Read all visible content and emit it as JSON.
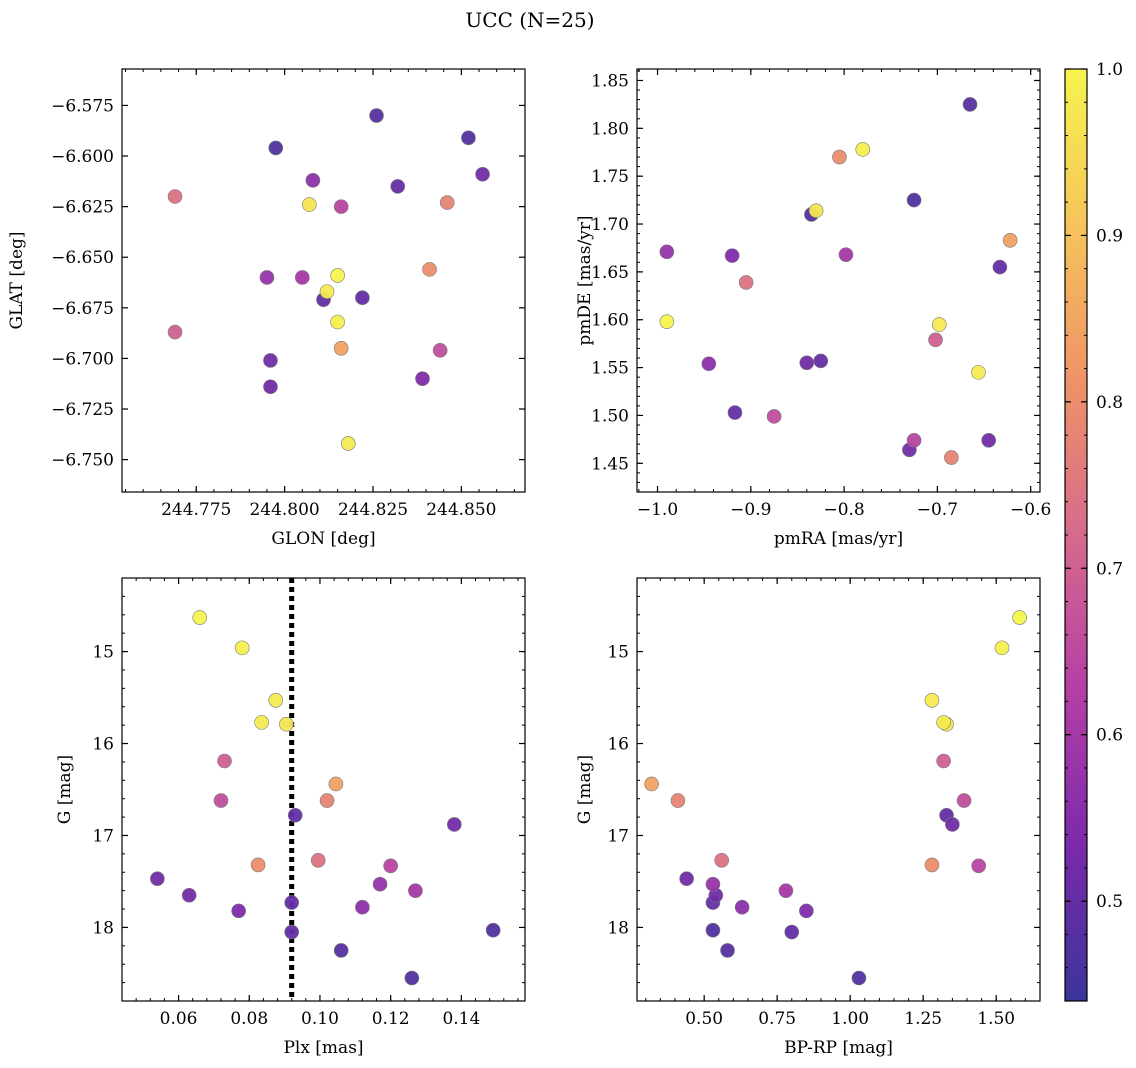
{
  "figure": {
    "title": "UCC (N=25)"
  },
  "colorbar": {
    "range": [
      0.44,
      1.0
    ],
    "ticks": [
      0.5,
      0.6,
      0.7,
      0.8,
      0.9,
      1.0
    ],
    "tick_labels": [
      "0.5",
      "0.6",
      "0.7",
      "0.8",
      "0.9",
      "1.0"
    ],
    "colormap": "plasma",
    "colormap_stops": [
      "#3b3599",
      "#7b2aab",
      "#b43fa6",
      "#d66a8c",
      "#ee9367",
      "#f6c45a",
      "#f5f44e"
    ]
  },
  "chart_data": [
    {
      "id": "glon-glat",
      "type": "scatter",
      "xlabel": "GLON [deg]",
      "ylabel": "GLAT [deg]",
      "xlim": [
        244.754,
        244.868
      ],
      "ylim": [
        -6.766,
        -6.557
      ],
      "xticks": [
        244.775,
        244.8,
        244.825,
        244.85
      ],
      "xtick_labels": [
        "244.775",
        "244.800",
        "244.825",
        "244.850"
      ],
      "yticks": [
        -6.575,
        -6.6,
        -6.625,
        -6.65,
        -6.675,
        -6.7,
        -6.725,
        -6.75
      ],
      "ytick_labels": [
        "−6.575",
        "−6.600",
        "−6.625",
        "−6.650",
        "−6.675",
        "−6.700",
        "−6.725",
        "−6.750"
      ]
    },
    {
      "id": "pmra-pmde",
      "type": "scatter",
      "xlabel": "pmRA [mas/yr]",
      "ylabel": "pmDE [mas/yr]",
      "xlim": [
        -1.022,
        -0.59
      ],
      "ylim": [
        1.42,
        1.862
      ],
      "xticks": [
        -1.0,
        -0.9,
        -0.8,
        -0.7,
        -0.6
      ],
      "xtick_labels": [
        "−1.0",
        "−0.9",
        "−0.8",
        "−0.7",
        "−0.6"
      ],
      "yticks": [
        1.45,
        1.5,
        1.55,
        1.6,
        1.65,
        1.7,
        1.75,
        1.8,
        1.85
      ],
      "ytick_labels": [
        "1.45",
        "1.50",
        "1.55",
        "1.60",
        "1.65",
        "1.70",
        "1.75",
        "1.80",
        "1.85"
      ]
    },
    {
      "id": "plx-g",
      "type": "scatter",
      "xlabel": "Plx [mas]",
      "ylabel": "G [mag]",
      "xlim": [
        0.044,
        0.158
      ],
      "ylim": [
        18.8,
        14.2
      ],
      "y_inverted": true,
      "xticks": [
        0.06,
        0.08,
        0.1,
        0.12,
        0.14
      ],
      "xtick_labels": [
        "0.06",
        "0.08",
        "0.10",
        "0.12",
        "0.14"
      ],
      "yticks": [
        15,
        16,
        17,
        18
      ],
      "ytick_labels": [
        "15",
        "16",
        "17",
        "18"
      ],
      "vline": 0.092
    },
    {
      "id": "bprp-g",
      "type": "scatter",
      "xlabel": "BP-RP [mag]",
      "ylabel": "G [mag]",
      "xlim": [
        0.27,
        1.65
      ],
      "ylim": [
        18.8,
        14.2
      ],
      "y_inverted": true,
      "xticks": [
        0.5,
        0.75,
        1.0,
        1.25,
        1.5
      ],
      "xtick_labels": [
        "0.50",
        "0.75",
        "1.00",
        "1.25",
        "1.50"
      ],
      "yticks": [
        15,
        16,
        17,
        18
      ],
      "ytick_labels": [
        "15",
        "16",
        "17",
        "18"
      ]
    }
  ],
  "stars": [
    {
      "glon": 244.826,
      "glat": -6.58,
      "pmra": -0.665,
      "pmde": 1.825,
      "plx": 0.106,
      "g": 18.25,
      "bprp": 0.58,
      "p": 0.48
    },
    {
      "glon": 244.7975,
      "glat": -6.596,
      "pmra": -0.725,
      "pmde": 1.725,
      "plx": 0.126,
      "g": 18.55,
      "bprp": 1.03,
      "p": 0.47
    },
    {
      "glon": 244.852,
      "glat": -6.591,
      "pmra": -0.835,
      "pmde": 1.71,
      "plx": 0.149,
      "g": 18.03,
      "bprp": 0.53,
      "p": 0.47
    },
    {
      "glon": 244.856,
      "glat": -6.609,
      "pmra": -0.84,
      "pmde": 1.555,
      "plx": 0.138,
      "g": 16.88,
      "bprp": 1.35,
      "p": 0.52
    },
    {
      "glon": 244.832,
      "glat": -6.615,
      "pmra": -0.633,
      "pmde": 1.655,
      "plx": 0.092,
      "g": 18.05,
      "bprp": 0.8,
      "p": 0.5
    },
    {
      "glon": 244.822,
      "glat": -6.67,
      "pmra": -0.825,
      "pmde": 1.557,
      "plx": 0.092,
      "g": 17.73,
      "bprp": 0.53,
      "p": 0.5
    },
    {
      "glon": 244.811,
      "glat": -6.671,
      "pmra": -0.917,
      "pmde": 1.503,
      "plx": 0.093,
      "g": 16.78,
      "bprp": 1.33,
      "p": 0.5
    },
    {
      "glon": 244.796,
      "glat": -6.701,
      "pmra": -0.645,
      "pmde": 1.474,
      "plx": 0.063,
      "g": 17.65,
      "bprp": 0.54,
      "p": 0.52
    },
    {
      "glon": 244.796,
      "glat": -6.714,
      "pmra": -0.73,
      "pmde": 1.464,
      "plx": 0.054,
      "g": 17.47,
      "bprp": 0.44,
      "p": 0.52
    },
    {
      "glon": 244.839,
      "glat": -6.71,
      "pmra": -0.92,
      "pmde": 1.667,
      "plx": 0.077,
      "g": 17.82,
      "bprp": 0.85,
      "p": 0.54
    },
    {
      "glon": 244.808,
      "glat": -6.612,
      "pmra": -0.945,
      "pmde": 1.554,
      "plx": 0.112,
      "g": 17.78,
      "bprp": 0.63,
      "p": 0.56
    },
    {
      "glon": 244.795,
      "glat": -6.66,
      "pmra": -0.99,
      "pmde": 1.671,
      "plx": 0.117,
      "g": 17.53,
      "bprp": 0.53,
      "p": 0.58
    },
    {
      "glon": 244.805,
      "glat": -6.66,
      "pmra": -0.798,
      "pmde": 1.668,
      "plx": 0.127,
      "g": 17.6,
      "bprp": 0.78,
      "p": 0.6
    },
    {
      "glon": 244.816,
      "glat": -6.625,
      "pmra": -0.725,
      "pmde": 1.474,
      "plx": 0.12,
      "g": 17.33,
      "bprp": 1.44,
      "p": 0.64
    },
    {
      "glon": 244.844,
      "glat": -6.696,
      "pmra": -0.875,
      "pmde": 1.499,
      "plx": 0.072,
      "g": 16.62,
      "bprp": 1.39,
      "p": 0.66
    },
    {
      "glon": 244.769,
      "glat": -6.687,
      "pmra": -0.702,
      "pmde": 1.579,
      "plx": 0.073,
      "g": 16.19,
      "bprp": 1.32,
      "p": 0.7
    },
    {
      "glon": 244.769,
      "glat": -6.62,
      "pmra": -0.905,
      "pmde": 1.639,
      "plx": 0.0995,
      "g": 17.27,
      "bprp": 0.56,
      "p": 0.74
    },
    {
      "glon": 244.846,
      "glat": -6.623,
      "pmra": -0.685,
      "pmde": 1.456,
      "plx": 0.102,
      "g": 16.62,
      "bprp": 0.41,
      "p": 0.78
    },
    {
      "glon": 244.841,
      "glat": -6.656,
      "pmra": -0.805,
      "pmde": 1.77,
      "plx": 0.0825,
      "g": 17.32,
      "bprp": 1.28,
      "p": 0.8
    },
    {
      "glon": 244.816,
      "glat": -6.695,
      "pmra": -0.622,
      "pmde": 1.683,
      "plx": 0.1045,
      "g": 16.44,
      "bprp": 0.32,
      "p": 0.84
    },
    {
      "glon": 244.807,
      "glat": -6.624,
      "pmra": -0.83,
      "pmde": 1.714,
      "plx": 0.0905,
      "g": 15.79,
      "bprp": 1.33,
      "p": 0.97
    },
    {
      "glon": 244.818,
      "glat": -6.742,
      "pmra": -0.656,
      "pmde": 1.545,
      "plx": 0.0835,
      "g": 15.77,
      "bprp": 1.32,
      "p": 0.98
    },
    {
      "glon": 244.812,
      "glat": -6.667,
      "pmra": -0.698,
      "pmde": 1.595,
      "plx": 0.0875,
      "g": 15.53,
      "bprp": 1.28,
      "p": 0.98
    },
    {
      "glon": 244.815,
      "glat": -6.682,
      "pmra": -0.78,
      "pmde": 1.778,
      "plx": 0.078,
      "g": 14.96,
      "bprp": 1.52,
      "p": 0.99
    },
    {
      "glon": 244.815,
      "glat": -6.659,
      "pmra": -0.99,
      "pmde": 1.598,
      "plx": 0.066,
      "g": 14.63,
      "bprp": 1.58,
      "p": 1.0
    }
  ]
}
